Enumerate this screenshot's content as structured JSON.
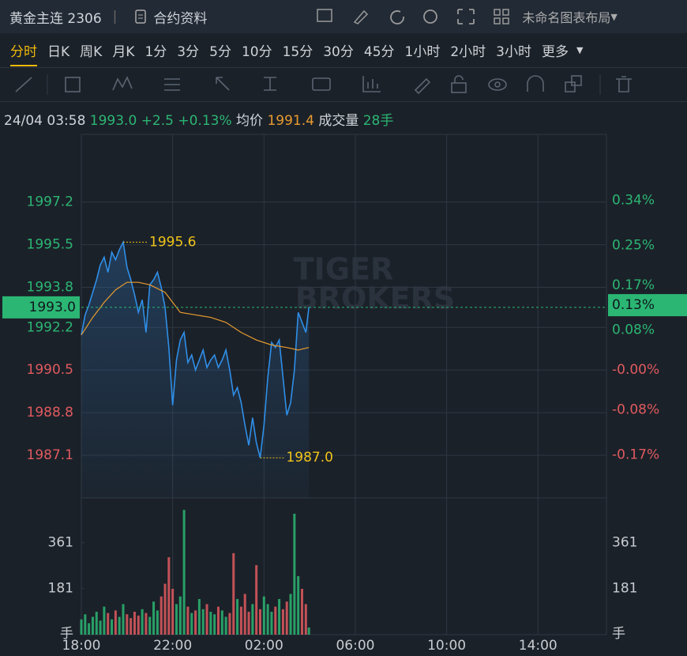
{
  "header": {
    "symbol": "黄金主连 2306",
    "contract_info": "合约资料",
    "layout_name": "未命名图表布局"
  },
  "tabs": [
    "分时",
    "日K",
    "周K",
    "月K",
    "1分",
    "3分",
    "5分",
    "10分",
    "15分",
    "30分",
    "45分",
    "1小时",
    "2小时",
    "3小时",
    "更多"
  ],
  "info": {
    "time": "24/04 03:58",
    "price": "1993.0",
    "change": "+2.5",
    "change_pct": "+0.13%",
    "avg_label": "均价",
    "avg": "1991.4",
    "volume_label": "成交量",
    "volume": "28手"
  },
  "watermark": [
    "TIGER",
    "BROKERS"
  ],
  "chart_data": [
    {
      "type": "line",
      "x": [
        0,
        10,
        20,
        30,
        40,
        50,
        60,
        70,
        80,
        90,
        100,
        110,
        120,
        130,
        140,
        150,
        160,
        170,
        180,
        190,
        200,
        210,
        220,
        230,
        240,
        250,
        260,
        270,
        280,
        290,
        300,
        310,
        320,
        330,
        340,
        350,
        360,
        370,
        380,
        390,
        400,
        410,
        420,
        430,
        440,
        450,
        460,
        470,
        480,
        490,
        500,
        510,
        520,
        530,
        540,
        550,
        560,
        570,
        580,
        590,
        598
      ],
      "series": [
        {
          "color": "#2f8fe8",
          "values": [
            1991.9,
            1992.7,
            1993.1,
            1993.6,
            1994.1,
            1994.7,
            1995.0,
            1994.4,
            1995.2,
            1994.9,
            1995.3,
            1995.6,
            1994.6,
            1994.1,
            1993.5,
            1992.8,
            1993.3,
            1992.0,
            1993.9,
            1994.1,
            1994.4,
            1993.8,
            1993.0,
            1991.4,
            1989.1,
            1990.9,
            1991.7,
            1992.0,
            1990.8,
            1991.1,
            1990.5,
            1990.9,
            1991.3,
            1990.6,
            1990.9,
            1991.1,
            1990.6,
            1990.9,
            1991.3,
            1990.5,
            1989.5,
            1989.8,
            1989.2,
            1988.3,
            1987.5,
            1988.6,
            1987.6,
            1987.0,
            1988.3,
            1990.2,
            1991.6,
            1991.4,
            1991.7,
            1990.2,
            1988.7,
            1989.2,
            1990.5,
            1992.8,
            1992.4,
            1992.0,
            1993.0
          ]
        },
        {
          "color": "#e89b2f",
          "x": [
            0,
            30,
            60,
            90,
            120,
            150,
            180,
            220,
            260,
            300,
            340,
            380,
            420,
            460,
            500,
            540,
            570,
            598
          ],
          "values": [
            1991.9,
            1992.6,
            1993.2,
            1993.7,
            1994.0,
            1994.0,
            1993.9,
            1993.6,
            1992.8,
            1992.7,
            1992.6,
            1992.4,
            1992.0,
            1991.7,
            1991.5,
            1991.4,
            1991.3,
            1991.4
          ]
        }
      ],
      "xlim": [
        0,
        1380
      ],
      "ylim": [
        1985.4,
        1999.9
      ],
      "yticks": [
        1997.2,
        1995.5,
        1993.8,
        1992.2,
        1990.5,
        1988.8,
        1987.1
      ],
      "y2lim": [
        -0.2562,
        0.4722
      ],
      "y2ticks": [
        {
          "value": 0.34,
          "label": "0.34%"
        },
        {
          "value": 0.25,
          "label": "0.25%"
        },
        {
          "value": 0.17,
          "label": "0.17%"
        },
        {
          "value": 0.08,
          "label": "0.08%"
        },
        {
          "value": 0,
          "label": "-0.00%"
        },
        {
          "value": -0.08,
          "label": "-0.08%"
        },
        {
          "value": -0.17,
          "label": "-0.17%"
        }
      ],
      "last": {
        "value": 1993.0,
        "label": "1993.0",
        "pct": {
          "value": 0.13,
          "label": "0.13%"
        }
      },
      "annotations": [
        {
          "x": 110,
          "y": 1995.6,
          "label": "1995.6"
        },
        {
          "x": 470,
          "y": 1987.0,
          "label": "1987.0"
        }
      ],
      "up_color": "#2bb673",
      "down_color": "#e05a5f",
      "grid": true
    },
    {
      "type": "bar",
      "x": [
        0,
        10,
        20,
        30,
        40,
        50,
        60,
        70,
        80,
        90,
        100,
        110,
        120,
        130,
        140,
        150,
        160,
        170,
        180,
        190,
        200,
        210,
        220,
        230,
        240,
        250,
        260,
        270,
        280,
        290,
        300,
        310,
        320,
        330,
        340,
        350,
        360,
        370,
        380,
        390,
        400,
        410,
        420,
        430,
        440,
        450,
        460,
        470,
        480,
        490,
        500,
        510,
        520,
        530,
        540,
        550,
        560,
        570,
        580,
        590,
        598
      ],
      "values": [
        60,
        80,
        45,
        70,
        90,
        55,
        110,
        85,
        60,
        95,
        70,
        120,
        80,
        65,
        90,
        75,
        100,
        85,
        70,
        130,
        95,
        150,
        200,
        304,
        180,
        120,
        150,
        490,
        110,
        85,
        95,
        140,
        100,
        120,
        90,
        80,
        110,
        95,
        70,
        85,
        320,
        140,
        110,
        160,
        90,
        120,
        273,
        100,
        150,
        120,
        90,
        110,
        140,
        100,
        130,
        160,
        475,
        230,
        180,
        120,
        28
      ],
      "xlim": [
        0,
        1380
      ],
      "xticks": [
        {
          "value": 0,
          "label": "18:00"
        },
        {
          "value": 240,
          "label": "22:00"
        },
        {
          "value": 480,
          "label": "02:00"
        },
        {
          "value": 720,
          "label": "06:00"
        },
        {
          "value": 960,
          "label": "10:00"
        },
        {
          "value": 1200,
          "label": "14:00"
        }
      ],
      "ylim": [
        0,
        537
      ],
      "yticks": [
        181,
        361
      ],
      "unit_label": "手",
      "up_color": "#2bb673",
      "down_color": "#e05a5f"
    }
  ]
}
